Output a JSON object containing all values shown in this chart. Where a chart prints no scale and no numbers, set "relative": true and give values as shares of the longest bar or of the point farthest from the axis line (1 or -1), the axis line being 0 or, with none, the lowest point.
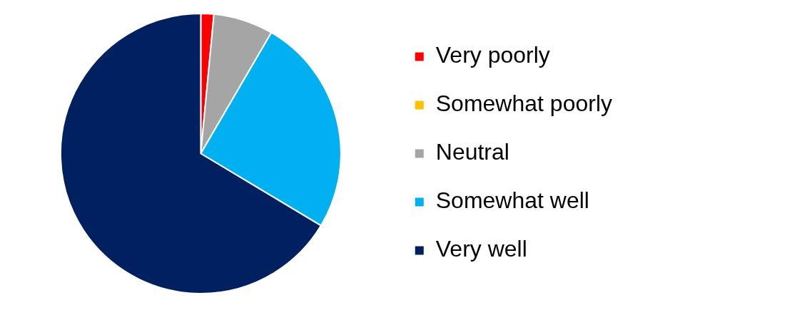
{
  "chart_data": {
    "type": "pie",
    "relative": true,
    "categories": [
      "Very poorly",
      "Somewhat poorly",
      "Neutral",
      "Somewhat well",
      "Very well"
    ],
    "values": [
      1.5,
      0,
      6.9,
      25.2,
      66.4
    ],
    "colors": [
      "#ff0000",
      "#ffc000",
      "#a5a5a5",
      "#00b0f0",
      "#002060"
    ],
    "legend": "right"
  }
}
